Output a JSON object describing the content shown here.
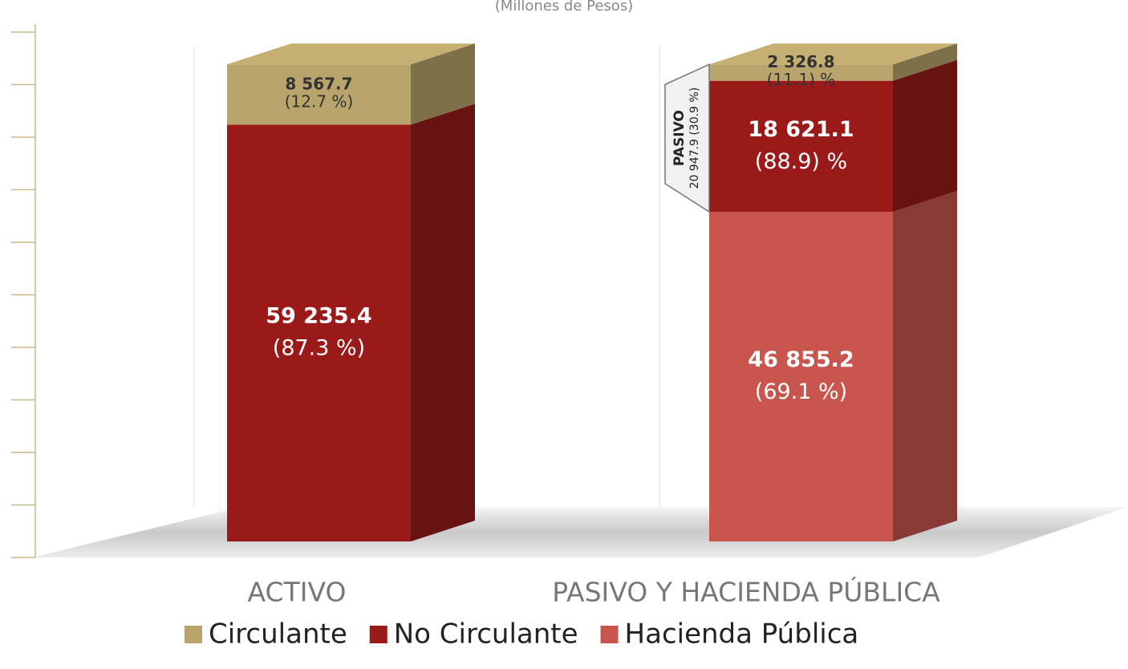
{
  "chart_data": {
    "type": "stacked-bar-3d",
    "title": "(Millones de Pesos)",
    "categories": [
      "ACTIVO",
      "PASIVO Y HACIENDA PÚBLICA"
    ],
    "series": [
      {
        "name": "Circulante",
        "color": "#b9a46b",
        "values": [
          8567.7,
          2326.8
        ],
        "value_labels": [
          "8 567.7",
          "2 326.8"
        ],
        "percent_labels": [
          "(12.7 %)",
          "(11.1) %"
        ]
      },
      {
        "name": "No Circulante",
        "color": "#9a1a1a",
        "values": [
          59235.4,
          18621.1
        ],
        "value_labels": [
          "59 235.4",
          "18 621.1"
        ],
        "percent_labels": [
          "(87.3 %)",
          "(88.9) %"
        ]
      },
      {
        "name": "Hacienda Pública",
        "color": "#c8564f",
        "values": [
          null,
          46855.2
        ],
        "value_labels": [
          null,
          "46 855.2"
        ],
        "percent_labels": [
          null,
          "(69.1 %)"
        ]
      }
    ],
    "annotation": {
      "title": "PASIVO",
      "text": "20 947.9 (30.9 %)"
    },
    "ylim": [
      0,
      70000
    ],
    "yticks": [
      0,
      7000,
      14000,
      21000,
      28000,
      35000,
      42000,
      49000,
      56000,
      63000,
      70000
    ],
    "legend": "bottom"
  }
}
